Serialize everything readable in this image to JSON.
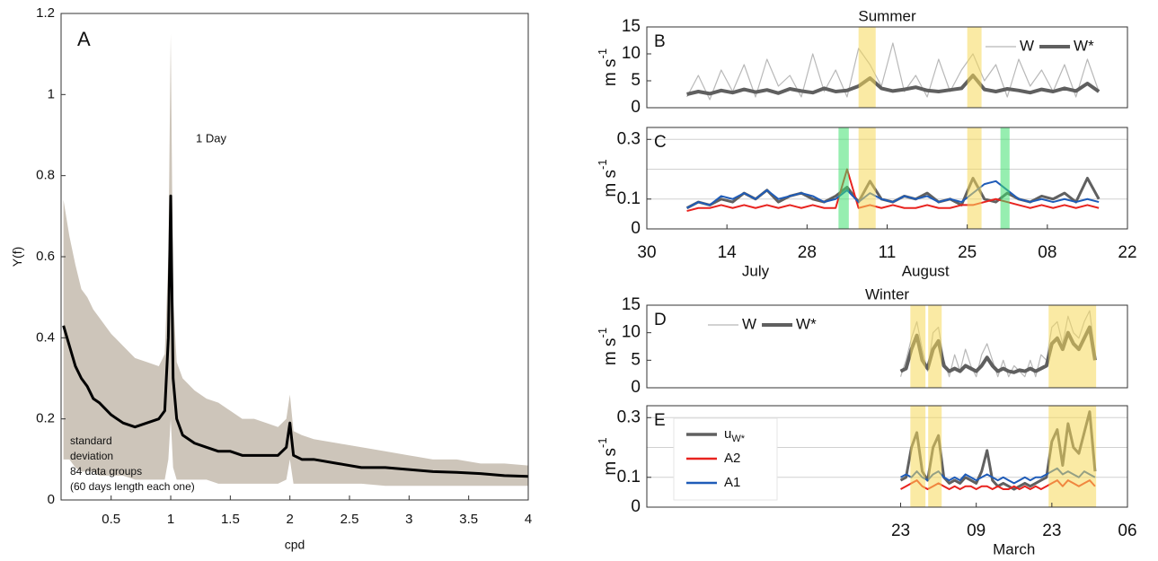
{
  "chart_data": [
    {
      "type": "line",
      "panel_label": "A",
      "xlabel": "cpd",
      "ylabel": "Y(f)",
      "annotations": [
        "1 Day",
        "standard",
        "deviation",
        "84 data groups",
        " (60 days length each one)"
      ],
      "xlim": [
        0.08,
        4
      ],
      "ylim": [
        0,
        1.2
      ],
      "xticks": [
        0.5,
        1,
        1.5,
        2,
        2.5,
        3,
        3.5,
        4
      ],
      "yticks": [
        0,
        0.2,
        0.4,
        0.6,
        0.8,
        1,
        1.2
      ],
      "x": [
        0.1,
        0.15,
        0.2,
        0.25,
        0.3,
        0.35,
        0.4,
        0.5,
        0.6,
        0.7,
        0.8,
        0.9,
        0.95,
        0.98,
        1.0,
        1.02,
        1.05,
        1.1,
        1.2,
        1.3,
        1.4,
        1.5,
        1.6,
        1.7,
        1.8,
        1.9,
        1.97,
        2.0,
        2.03,
        2.1,
        2.2,
        2.4,
        2.6,
        2.8,
        3.0,
        3.2,
        3.4,
        3.6,
        3.8,
        4.0
      ],
      "band": {
        "color": "#cdc5ba",
        "upper": [
          0.74,
          0.65,
          0.58,
          0.52,
          0.5,
          0.47,
          0.45,
          0.41,
          0.38,
          0.35,
          0.34,
          0.33,
          0.36,
          0.6,
          1.15,
          0.5,
          0.34,
          0.3,
          0.27,
          0.25,
          0.24,
          0.22,
          0.2,
          0.2,
          0.19,
          0.18,
          0.2,
          0.26,
          0.17,
          0.16,
          0.15,
          0.14,
          0.13,
          0.12,
          0.11,
          0.1,
          0.1,
          0.09,
          0.09,
          0.085
        ],
        "lower": [
          0.1,
          0.1,
          0.08,
          0.07,
          0.07,
          0.07,
          0.06,
          0.06,
          0.06,
          0.05,
          0.05,
          0.05,
          0.05,
          0.1,
          0.2,
          0.08,
          0.05,
          0.05,
          0.05,
          0.05,
          0.04,
          0.04,
          0.04,
          0.04,
          0.04,
          0.04,
          0.05,
          0.1,
          0.04,
          0.04,
          0.04,
          0.04,
          0.04,
          0.035,
          0.035,
          0.035,
          0.035,
          0.035,
          0.035,
          0.035
        ]
      },
      "series": [
        {
          "color": "#000000",
          "width": 3,
          "values": [
            0.43,
            0.38,
            0.33,
            0.3,
            0.28,
            0.25,
            0.24,
            0.21,
            0.19,
            0.18,
            0.19,
            0.2,
            0.22,
            0.4,
            0.75,
            0.3,
            0.2,
            0.16,
            0.14,
            0.13,
            0.12,
            0.12,
            0.11,
            0.11,
            0.11,
            0.11,
            0.13,
            0.19,
            0.11,
            0.1,
            0.1,
            0.09,
            0.08,
            0.08,
            0.075,
            0.07,
            0.068,
            0.065,
            0.06,
            0.058
          ]
        }
      ]
    },
    {
      "type": "line",
      "title": "Summer",
      "panel_label": "B",
      "ylabel": "m s",
      "ylabel_sup": "-1",
      "xlim": [
        181,
        265
      ],
      "ylim": [
        0,
        15
      ],
      "yticks": [
        0,
        5,
        10,
        15
      ],
      "legend": "upper right",
      "x": [
        188,
        190,
        192,
        194,
        196,
        198,
        200,
        202,
        204,
        206,
        208,
        210,
        212,
        214,
        216,
        218,
        220,
        222,
        224,
        226,
        228,
        230,
        232,
        234,
        236,
        238,
        240,
        242,
        244,
        246,
        248,
        250,
        252,
        254,
        256,
        258,
        260
      ],
      "highlights": [
        {
          "range": [
            218,
            221
          ],
          "color": "#f5d85a"
        },
        {
          "range": [
            237,
            239.5
          ],
          "color": "#f5d85a"
        }
      ],
      "series": [
        {
          "name": "W",
          "color": "#b8b8b8",
          "width": 1.2,
          "values": [
            2,
            6,
            1.5,
            7,
            3,
            8,
            2,
            9,
            4,
            6,
            2,
            10,
            3,
            7,
            2,
            11,
            8,
            4,
            12,
            3,
            6,
            2,
            9,
            3,
            7,
            10,
            5,
            8,
            2,
            9,
            4,
            7,
            3,
            8,
            2,
            9,
            3
          ]
        },
        {
          "name": "W*",
          "color": "#5f5f5f",
          "width": 4,
          "values": [
            2.5,
            3,
            2.6,
            3.2,
            2.8,
            3.4,
            2.9,
            3.3,
            2.7,
            3.5,
            3.1,
            2.8,
            3.6,
            3,
            3.2,
            4,
            5.5,
            3.6,
            3.1,
            3.4,
            3.8,
            3.2,
            3,
            3.3,
            3.6,
            6,
            3.4,
            3,
            3.5,
            3.2,
            2.8,
            3.4,
            3,
            3.6,
            3.1,
            4.5,
            3
          ]
        }
      ]
    },
    {
      "type": "line",
      "panel_label": "C",
      "ylabel": "m s",
      "ylabel_sup": "-1",
      "xlim": [
        181,
        265
      ],
      "ylim": [
        0,
        0.34
      ],
      "yticks": [
        0,
        0.1,
        0.3
      ],
      "grid": [
        0.1,
        0.2,
        0.3
      ],
      "xticks": [
        {
          "value": 181,
          "label": "30"
        },
        {
          "value": 195,
          "label": "14"
        },
        {
          "value": 209,
          "label": "28"
        },
        {
          "value": 223,
          "label": "11"
        },
        {
          "value": 237,
          "label": "25"
        },
        {
          "value": 251,
          "label": "08"
        },
        {
          "value": 265,
          "label": "22"
        }
      ],
      "month_labels": [
        {
          "value": 200,
          "label": "July"
        },
        {
          "value": 229.7,
          "label": "August"
        }
      ],
      "x": [
        188,
        190,
        192,
        194,
        196,
        198,
        200,
        202,
        204,
        206,
        208,
        210,
        212,
        214,
        216,
        218,
        220,
        222,
        224,
        226,
        228,
        230,
        232,
        234,
        236,
        238,
        240,
        242,
        244,
        246,
        248,
        250,
        252,
        254,
        256,
        258,
        260
      ],
      "highlights": [
        {
          "range": [
            218,
            221
          ],
          "color": "#f5d85a"
        },
        {
          "range": [
            237,
            239.5
          ],
          "color": "#f5d85a"
        },
        {
          "range": [
            214.5,
            216.3
          ],
          "color": "#3fe070"
        },
        {
          "range": [
            242.8,
            244.4
          ],
          "color": "#3fe070"
        }
      ],
      "series": [
        {
          "color": "#606060",
          "width": 3,
          "values": [
            0.07,
            0.09,
            0.08,
            0.1,
            0.09,
            0.12,
            0.1,
            0.13,
            0.09,
            0.11,
            0.12,
            0.1,
            0.09,
            0.11,
            0.14,
            0.09,
            0.16,
            0.1,
            0.09,
            0.11,
            0.1,
            0.12,
            0.09,
            0.1,
            0.08,
            0.17,
            0.1,
            0.09,
            0.12,
            0.1,
            0.09,
            0.11,
            0.1,
            0.12,
            0.09,
            0.17,
            0.1
          ]
        },
        {
          "color": "#e8231f",
          "width": 2,
          "values": [
            0.06,
            0.07,
            0.07,
            0.08,
            0.07,
            0.08,
            0.07,
            0.08,
            0.07,
            0.08,
            0.07,
            0.08,
            0.07,
            0.07,
            0.2,
            0.07,
            0.08,
            0.07,
            0.08,
            0.07,
            0.07,
            0.08,
            0.07,
            0.07,
            0.08,
            0.08,
            0.09,
            0.1,
            0.09,
            0.08,
            0.07,
            0.08,
            0.07,
            0.08,
            0.07,
            0.08,
            0.07
          ]
        },
        {
          "color": "#1f5cb8",
          "width": 2,
          "values": [
            0.07,
            0.09,
            0.08,
            0.11,
            0.1,
            0.12,
            0.1,
            0.13,
            0.1,
            0.11,
            0.12,
            0.11,
            0.09,
            0.1,
            0.13,
            0.09,
            0.12,
            0.1,
            0.09,
            0.11,
            0.1,
            0.11,
            0.09,
            0.1,
            0.09,
            0.12,
            0.15,
            0.16,
            0.13,
            0.1,
            0.09,
            0.1,
            0.09,
            0.1,
            0.09,
            0.1,
            0.09
          ]
        }
      ]
    },
    {
      "type": "line",
      "title": "Winter",
      "panel_label": "D",
      "ylabel": "m s",
      "ylabel_sup": "-1",
      "xlim": [
        7,
        96
      ],
      "ylim": [
        0,
        15
      ],
      "yticks": [
        0,
        5,
        10,
        15
      ],
      "legend": "upper left",
      "x": [
        54,
        55,
        56,
        57,
        58,
        59,
        60,
        61,
        62,
        63,
        64,
        65,
        66,
        67,
        68,
        69,
        70,
        71,
        72,
        73,
        74,
        75,
        76,
        77,
        78,
        79,
        80,
        81,
        82,
        83,
        84,
        85,
        86,
        87,
        88,
        89,
        90
      ],
      "highlights": [
        {
          "range": [
            55.8,
            58.6
          ],
          "color": "#f5d85a"
        },
        {
          "range": [
            59.1,
            61.6
          ],
          "color": "#f5d85a"
        },
        {
          "range": [
            81.4,
            90.2
          ],
          "color": "#f5d85a"
        }
      ],
      "series": [
        {
          "name": "W",
          "color": "#b8b8b8",
          "width": 1.2,
          "values": [
            2,
            5,
            9,
            12,
            7,
            3,
            10,
            11,
            5,
            2,
            6,
            3,
            7,
            4,
            2,
            6,
            8,
            5,
            2,
            5,
            2,
            4,
            3,
            2,
            5,
            2,
            6,
            5,
            11,
            12,
            8,
            13,
            10,
            9,
            12,
            14,
            6
          ]
        },
        {
          "name": "W*",
          "color": "#5f5f5f",
          "width": 4,
          "values": [
            3,
            3.5,
            7,
            9.5,
            5,
            3.5,
            7,
            8.5,
            4,
            3,
            3.5,
            3,
            4,
            3.5,
            3,
            4,
            5.5,
            4,
            3,
            3.5,
            3,
            2.8,
            3.2,
            3,
            3.5,
            3,
            3.5,
            4,
            8,
            9,
            7,
            10,
            8,
            7,
            9,
            11,
            5
          ]
        }
      ]
    },
    {
      "type": "line",
      "panel_label": "E",
      "ylabel": "m s",
      "ylabel_sup": "-1",
      "xlim": [
        7,
        96
      ],
      "ylim": [
        0,
        0.34
      ],
      "yticks": [
        0,
        0.1,
        0.3
      ],
      "grid": [
        0.1,
        0.2,
        0.3
      ],
      "legend": "upper left",
      "legend_box": true,
      "xticks": [
        {
          "value": 54,
          "label": "23"
        },
        {
          "value": 68,
          "label": "09"
        },
        {
          "value": 82,
          "label": "23"
        },
        {
          "value": 96,
          "label": "06"
        }
      ],
      "month_labels": [
        {
          "value": 75,
          "label": "March"
        }
      ],
      "x": [
        54,
        55,
        56,
        57,
        58,
        59,
        60,
        61,
        62,
        63,
        64,
        65,
        66,
        67,
        68,
        69,
        70,
        71,
        72,
        73,
        74,
        75,
        76,
        77,
        78,
        79,
        80,
        81,
        82,
        83,
        84,
        85,
        86,
        87,
        88,
        89,
        90
      ],
      "highlights": [
        {
          "range": [
            55.8,
            58.6
          ],
          "color": "#f5d85a"
        },
        {
          "range": [
            59.1,
            61.6
          ],
          "color": "#f5d85a"
        },
        {
          "range": [
            81.4,
            90.2
          ],
          "color": "#f5d85a"
        }
      ],
      "series": [
        {
          "name": "u",
          "subscript": "W*",
          "color": "#606060",
          "width": 3,
          "values": [
            0.09,
            0.1,
            0.2,
            0.25,
            0.12,
            0.09,
            0.2,
            0.24,
            0.1,
            0.08,
            0.09,
            0.08,
            0.1,
            0.09,
            0.08,
            0.12,
            0.19,
            0.09,
            0.07,
            0.08,
            0.07,
            0.06,
            0.07,
            0.08,
            0.07,
            0.08,
            0.09,
            0.1,
            0.22,
            0.26,
            0.14,
            0.28,
            0.2,
            0.18,
            0.25,
            0.32,
            0.12
          ]
        },
        {
          "name": "A2",
          "color": "#e8231f",
          "width": 2,
          "values": [
            0.06,
            0.07,
            0.08,
            0.09,
            0.07,
            0.06,
            0.07,
            0.08,
            0.07,
            0.06,
            0.07,
            0.06,
            0.07,
            0.07,
            0.06,
            0.07,
            0.07,
            0.06,
            0.07,
            0.06,
            0.06,
            0.07,
            0.06,
            0.07,
            0.06,
            0.07,
            0.06,
            0.07,
            0.08,
            0.09,
            0.07,
            0.09,
            0.08,
            0.07,
            0.08,
            0.09,
            0.07
          ]
        },
        {
          "name": "A1",
          "color": "#1f5cb8",
          "width": 2,
          "values": [
            0.1,
            0.11,
            0.1,
            0.12,
            0.1,
            0.09,
            0.11,
            0.12,
            0.1,
            0.09,
            0.1,
            0.09,
            0.11,
            0.1,
            0.09,
            0.1,
            0.11,
            0.1,
            0.09,
            0.1,
            0.09,
            0.08,
            0.09,
            0.1,
            0.09,
            0.1,
            0.1,
            0.11,
            0.12,
            0.13,
            0.11,
            0.12,
            0.11,
            0.1,
            0.12,
            0.11,
            0.1
          ]
        }
      ]
    }
  ]
}
